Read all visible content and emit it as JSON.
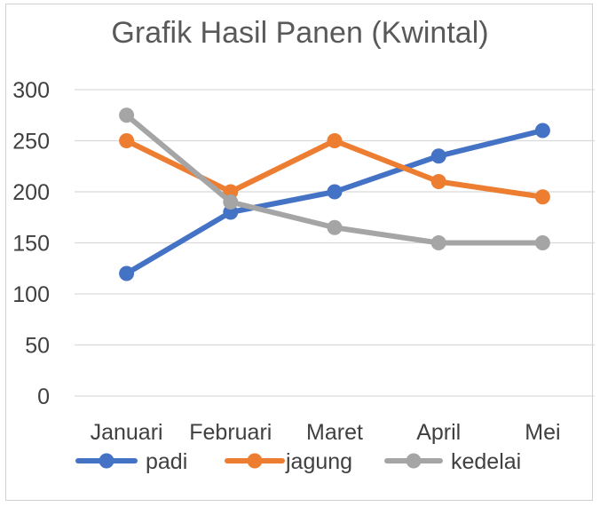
{
  "chart_data": {
    "type": "line",
    "title": "Grafik Hasil Panen (Kwintal)",
    "xlabel": "",
    "ylabel": "",
    "categories": [
      "Januari",
      "Februari",
      "Maret",
      "April",
      "Mei"
    ],
    "ylim": [
      0,
      300
    ],
    "yticks": [
      0,
      50,
      100,
      150,
      200,
      250,
      300
    ],
    "grid": true,
    "legend_position": "bottom",
    "series": [
      {
        "name": "padi",
        "color": "#4472C4",
        "values": [
          120,
          180,
          200,
          235,
          260
        ]
      },
      {
        "name": "jagung",
        "color": "#ED7D31",
        "values": [
          250,
          200,
          250,
          210,
          195
        ]
      },
      {
        "name": "kedelai",
        "color": "#A5A5A5",
        "values": [
          275,
          190,
          165,
          150,
          150
        ]
      }
    ]
  }
}
